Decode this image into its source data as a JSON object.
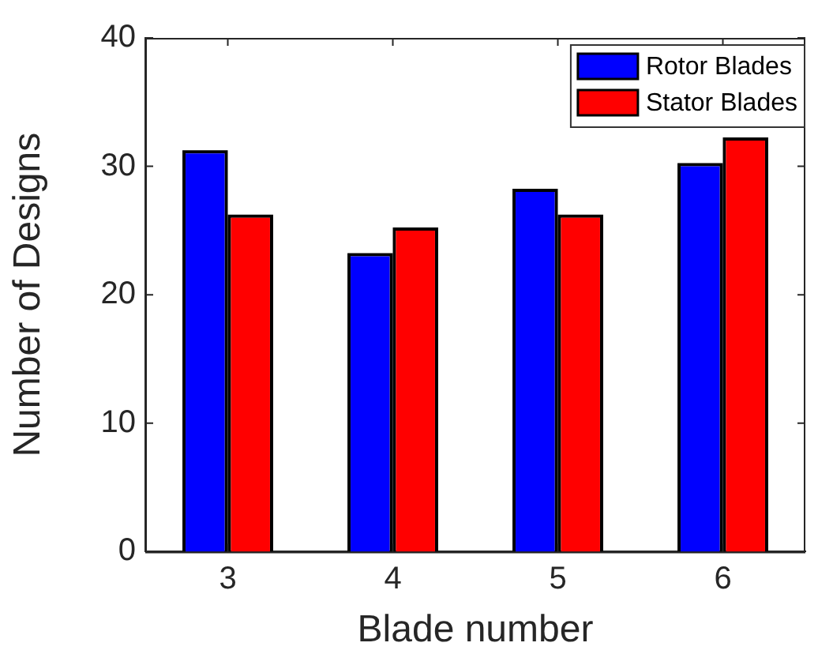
{
  "chart_data": {
    "type": "bar",
    "xlabel": "Blade number",
    "ylabel": "Number of Designs",
    "categories": [
      "3",
      "4",
      "5",
      "6"
    ],
    "series": [
      {
        "name": "Rotor Blades",
        "color": "#0000ff",
        "values": [
          31,
          23,
          28,
          30
        ]
      },
      {
        "name": "Stator Blades",
        "color": "#ff0000",
        "values": [
          26,
          25,
          26,
          32
        ]
      }
    ],
    "ylim": [
      0,
      40
    ],
    "yticks": [
      0,
      10,
      20,
      30,
      40
    ],
    "grid": false,
    "legend": "top right"
  }
}
